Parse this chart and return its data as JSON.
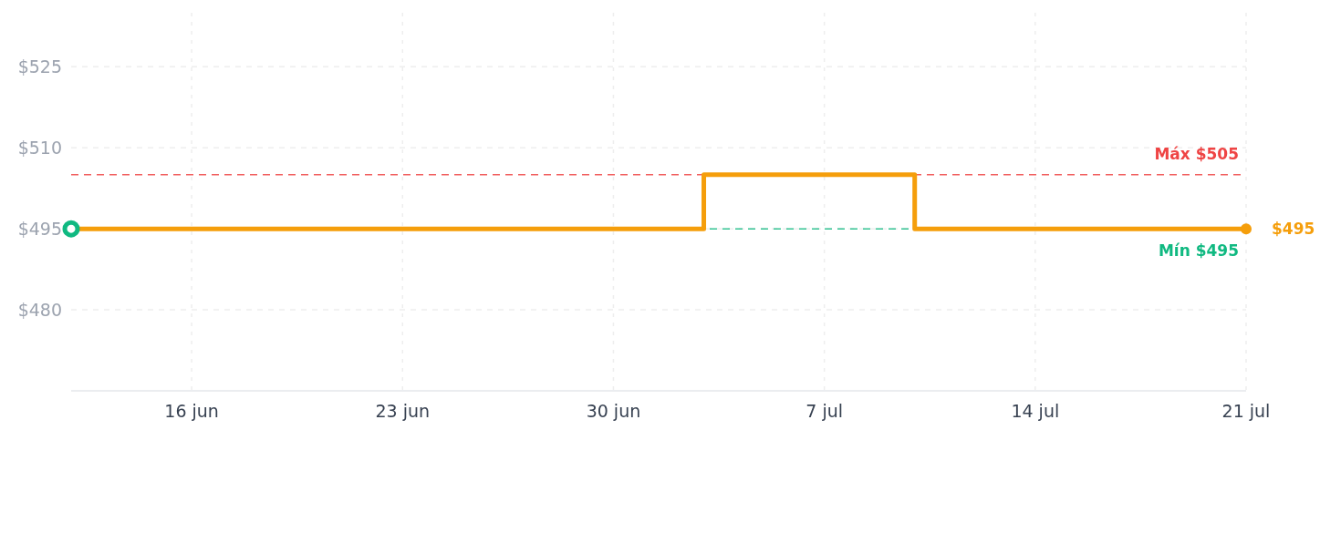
{
  "chart_data": {
    "type": "step",
    "x": [
      "--06-12",
      "--07-03",
      "--07-10",
      "--07-21"
    ],
    "series": [
      {
        "color": "#f59e0b",
        "values": [
          495,
          505,
          495,
          495
        ]
      },
      {
        "type": "scatter",
        "color": "#10b981",
        "x": [
          "--06-12"
        ],
        "values": [
          495
        ],
        "marker": "circle"
      },
      {
        "type": "scatter",
        "color": "#f59e0b",
        "x": [
          "--07-21"
        ],
        "values": [
          495
        ],
        "marker": "circle"
      }
    ],
    "xlim": [
      "--06-12",
      "--07-21"
    ],
    "xticks": [
      {
        "value": "--06-16",
        "label": "16 jun"
      },
      {
        "value": "--06-23",
        "label": "23 jun"
      },
      {
        "value": "--06-30",
        "label": "30 jun"
      },
      {
        "value": "--07-07",
        "label": "7 jul"
      },
      {
        "value": "--07-14",
        "label": "14 jul"
      },
      {
        "value": "--07-21",
        "label": "21 jul"
      }
    ],
    "ylim": [
      465,
      535
    ],
    "yticks": [
      {
        "value": 480,
        "label": "$480"
      },
      {
        "value": 495,
        "label": "$495"
      },
      {
        "value": 510,
        "label": "$510"
      },
      {
        "value": 525,
        "label": "$525"
      }
    ],
    "ref_lines": [
      {
        "axis": "y",
        "value": 505,
        "label": "Máx $505",
        "color": "#ef4444",
        "line_style": "dashed"
      },
      {
        "axis": "y",
        "value": 495,
        "label": "Mín $495",
        "color": "#10b981",
        "line_style": "dashed"
      }
    ],
    "annotations": [
      {
        "text": "$495",
        "x": "--07-21",
        "y": 495
      }
    ],
    "grid": true,
    "line_style": "solid"
  }
}
